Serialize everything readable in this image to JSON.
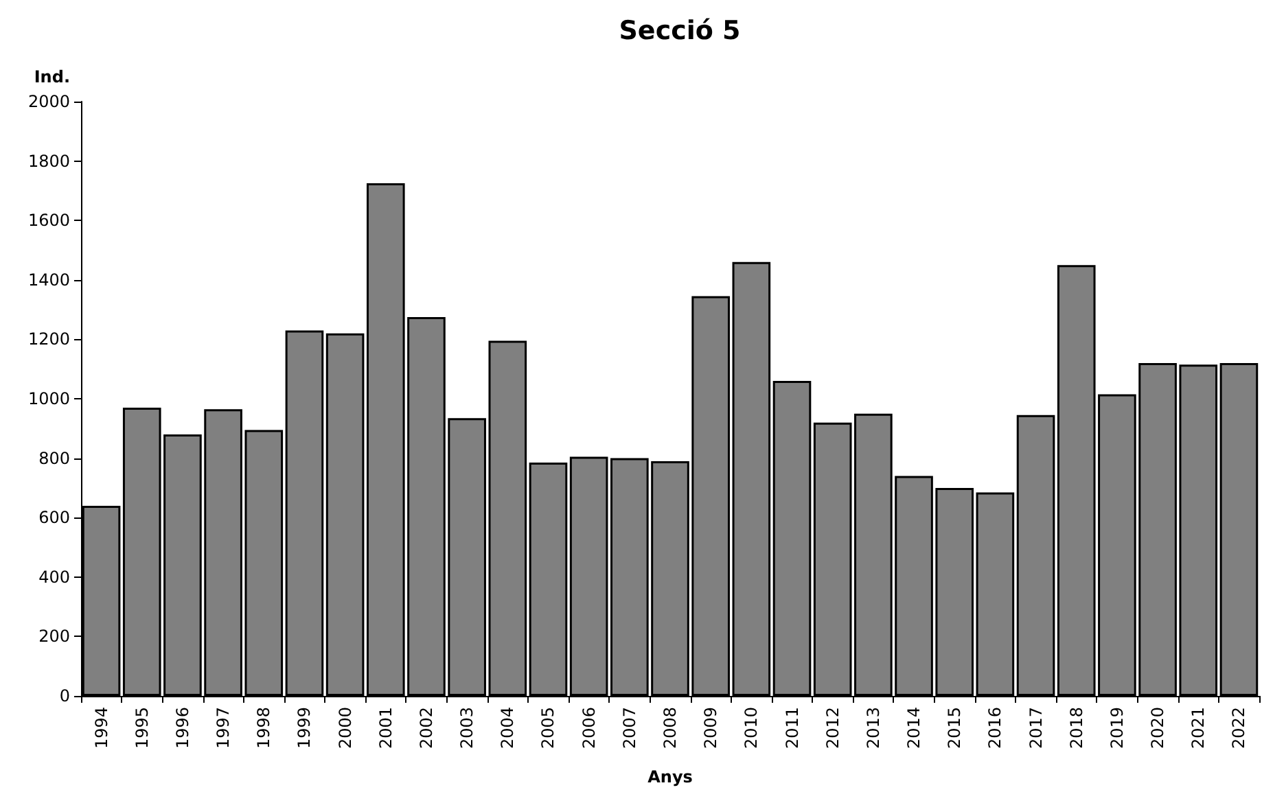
{
  "chart_data": {
    "type": "bar",
    "title": "Secció 5",
    "xlabel": "Anys",
    "ylabel": "Ind.",
    "categories": [
      "1994",
      "1995",
      "1996",
      "1997",
      "1998",
      "1999",
      "2000",
      "2001",
      "2002",
      "2003",
      "2004",
      "2005",
      "2006",
      "2007",
      "2008",
      "2009",
      "2010",
      "2011",
      "2012",
      "2013",
      "2014",
      "2015",
      "2016",
      "2017",
      "2018",
      "2019",
      "2020",
      "2021",
      "2022"
    ],
    "values": [
      640,
      970,
      880,
      965,
      895,
      1230,
      1220,
      1725,
      1275,
      935,
      1195,
      785,
      805,
      800,
      790,
      1345,
      1460,
      1060,
      920,
      950,
      740,
      700,
      685,
      945,
      1450,
      1015,
      1120,
      1115,
      1120
    ],
    "color": "#808080",
    "ylim": [
      0,
      2000
    ],
    "yticks": [
      0,
      200,
      400,
      600,
      800,
      1000,
      1200,
      1400,
      1600,
      1800,
      2000
    ],
    "grid": false
  }
}
